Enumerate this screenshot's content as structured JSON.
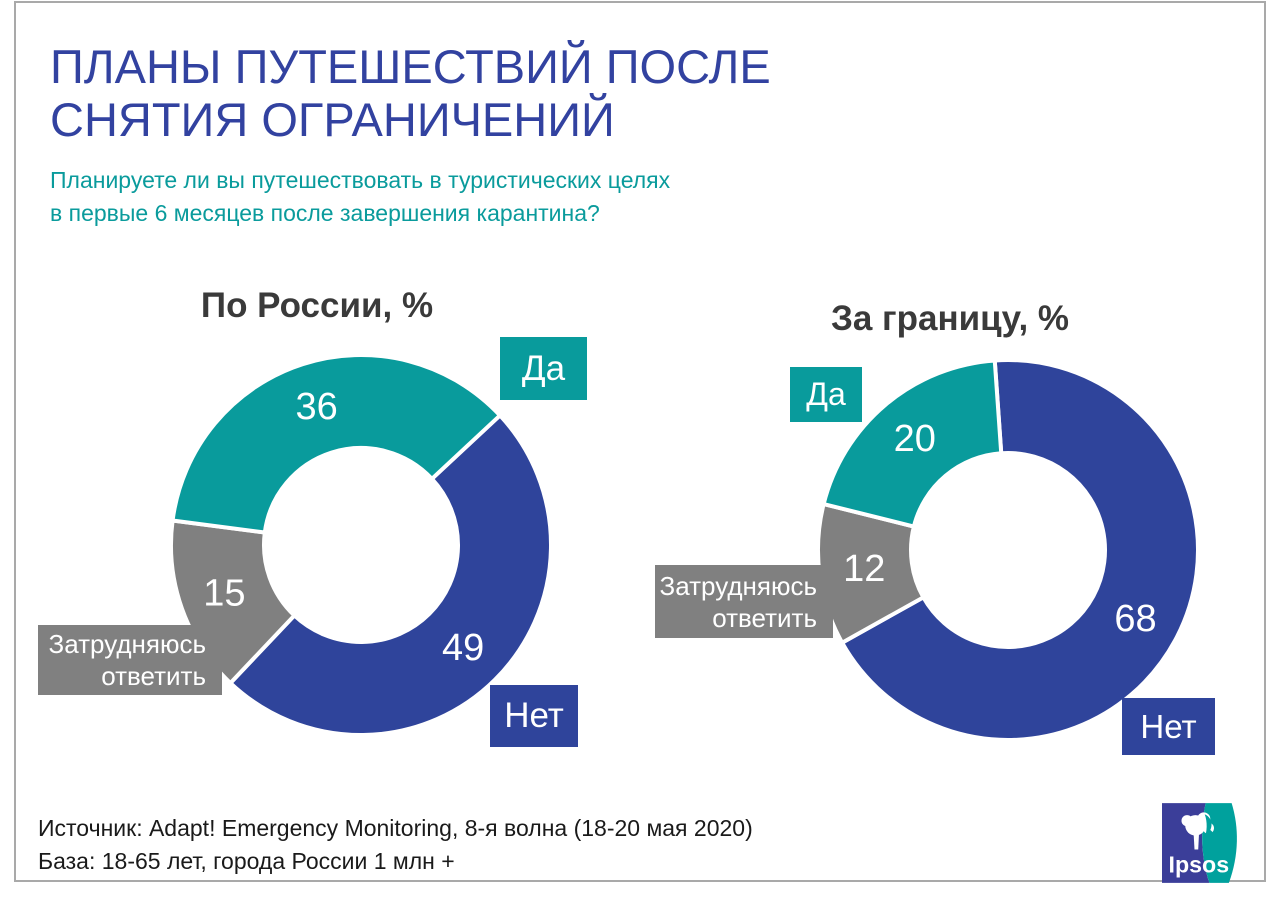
{
  "header": {
    "title_line1": "ПЛАНЫ ПУТЕШЕСТВИЙ ПОСЛЕ",
    "title_line2": "СНЯТИЯ ОГРАНИЧЕНИЙ",
    "subtitle_line1": "Планируете ли вы путешествовать в туристических целях",
    "subtitle_line2": "в первые 6 месяцев после завершения карантина?"
  },
  "legend": {
    "yes": "Да",
    "no": "Нет",
    "dk_line1": "Затрудняюсь",
    "dk_line2": "ответить"
  },
  "footer": {
    "source": "Источник: Adapt! Emergency Monitoring, 8-я волна (18-20 мая 2020)",
    "base": "База: 18-65 лет, города России 1 млн +"
  },
  "logo": {
    "brand": "Ipsos"
  },
  "colors": {
    "yes": "#099B9C",
    "no": "#2F449B",
    "dk": "#808080",
    "title": "#3242A0",
    "subtitle": "#0A9B9C",
    "logo_blue": "#3B3E99",
    "logo_teal": "#00A19D"
  },
  "chart_data": [
    {
      "type": "pie",
      "donut": true,
      "title": "По России, %",
      "start_angle_deg": 47,
      "categories": [
        "Да",
        "Нет",
        "Затрудняюсь ответить"
      ],
      "values": [
        36,
        49,
        15
      ],
      "slices": [
        {
          "key": "no",
          "label": "Нет",
          "value": 49,
          "color": "#2F449B"
        },
        {
          "key": "dk",
          "label": "Затрудняюсь ответить",
          "value": 15,
          "color": "#808080"
        },
        {
          "key": "yes",
          "label": "Да",
          "value": 36,
          "color": "#099B9C"
        }
      ],
      "callout_positions": {
        "yes": "top-right",
        "no": "bottom-right",
        "dk": "left"
      }
    },
    {
      "type": "pie",
      "donut": true,
      "title": "За границу, %",
      "start_angle_deg": -4,
      "categories": [
        "Да",
        "Нет",
        "Затрудняюсь ответить"
      ],
      "values": [
        20,
        68,
        12
      ],
      "slices": [
        {
          "key": "no",
          "label": "Нет",
          "value": 68,
          "color": "#2F449B"
        },
        {
          "key": "dk",
          "label": "Затрудняюсь ответить",
          "value": 12,
          "color": "#808080"
        },
        {
          "key": "yes",
          "label": "Да",
          "value": 20,
          "color": "#099B9C"
        }
      ],
      "callout_positions": {
        "yes": "top-left",
        "no": "bottom-right",
        "dk": "left"
      }
    }
  ]
}
